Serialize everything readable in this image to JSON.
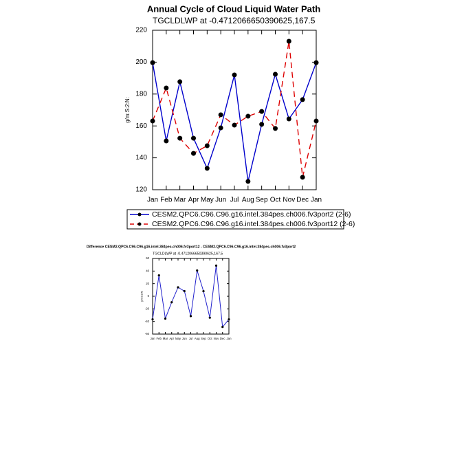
{
  "chart_data": [
    {
      "type": "line",
      "title": "Annual Cycle of Cloud Liquid Water Path",
      "subtitle": "TGCLDLWP at -0.4712066650390625,167.5",
      "ylabel": "g/m:S:2:N:",
      "categories": [
        "Jan",
        "Feb",
        "Mar",
        "Apr",
        "May",
        "Jun",
        "Jul",
        "Aug",
        "Sep",
        "Oct",
        "Nov",
        "Dec",
        "Jan"
      ],
      "ylim": [
        120,
        220
      ],
      "yticks": [
        120,
        140,
        160,
        180,
        200,
        220
      ],
      "series": [
        {
          "name": "CESM2.QPC6.C96.C96.g16.intel.384pes.ch006.fv3port2 (2-6)",
          "color": "#0000cc",
          "dash": "solid",
          "values": [
            199.7,
            150.6,
            187.7,
            152.3,
            133.4,
            158.8,
            192.0,
            125.2,
            161.0,
            192.4,
            164.4,
            176.5,
            199.7
          ]
        },
        {
          "name": "CESM2.QPC6.C96.C96.g16.intel.384pes.ch006.fv3port12 (2-6)",
          "color": "#dd0000",
          "dash": "dashed",
          "values": [
            163.1,
            183.8,
            152.3,
            142.8,
            147.6,
            167.0,
            160.5,
            166.1,
            169.1,
            158.4,
            213.1,
            127.8,
            163.1
          ]
        }
      ]
    },
    {
      "type": "line",
      "title": "Difference CESM2.QPC6.C96.C96.g16.intel.384pes.ch006.fv3port12 - CESM2.QPC6.C96.C96.g16.intel.384pes.ch006.fv3port2",
      "subtitle": "TGCLDLWP at -0.4712066650390625,167.5",
      "ylabel": "g/m:S:2:N:",
      "categories": [
        "Jan",
        "Feb",
        "Mar",
        "Apr",
        "May",
        "Jun",
        "Jul",
        "Aug",
        "Sep",
        "Oct",
        "Nov",
        "Dec",
        "Jan"
      ],
      "ylim": [
        -60,
        60
      ],
      "yticks": [
        -60,
        -40,
        -20,
        0,
        20,
        40,
        60
      ],
      "series": [
        {
          "color": "#2020cc",
          "dash": "solid",
          "values": [
            -36.6,
            33.2,
            -35.4,
            -9.5,
            14.2,
            8.2,
            -31.5,
            40.9,
            8.1,
            -34.0,
            48.7,
            -48.7,
            -36.6
          ]
        }
      ]
    }
  ]
}
